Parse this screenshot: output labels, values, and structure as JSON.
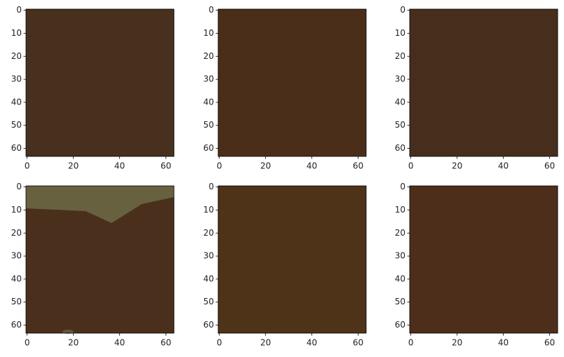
{
  "chart_data": [
    {
      "type": "image",
      "color": "#47301d",
      "xlim": [
        -0.5,
        63.5
      ],
      "ylim": [
        63.5,
        -0.5
      ],
      "xticks": [
        0,
        20,
        40,
        60
      ],
      "yticks": [
        0,
        10,
        20,
        30,
        40,
        50,
        60
      ]
    },
    {
      "type": "image",
      "color": "#4a2e1a",
      "xlim": [
        -0.5,
        63.5
      ],
      "ylim": [
        63.5,
        -0.5
      ],
      "xticks": [
        0,
        20,
        40,
        60
      ],
      "yticks": [
        0,
        10,
        20,
        30,
        40,
        50,
        60
      ]
    },
    {
      "type": "image",
      "color": "#472e1c",
      "xlim": [
        -0.5,
        63.5
      ],
      "ylim": [
        63.5,
        -0.5
      ],
      "xticks": [
        0,
        20,
        40,
        60
      ],
      "yticks": [
        0,
        10,
        20,
        30,
        40,
        50,
        60
      ]
    },
    {
      "type": "image",
      "color": "#4a301c",
      "xlim": [
        -0.5,
        63.5
      ],
      "ylim": [
        63.5,
        -0.5
      ],
      "xticks": [
        0,
        20,
        40,
        60
      ],
      "yticks": [
        0,
        10,
        20,
        30,
        40,
        50,
        60
      ]
    },
    {
      "type": "image",
      "color": "#4e3319",
      "xlim": [
        -0.5,
        63.5
      ],
      "ylim": [
        63.5,
        -0.5
      ],
      "xticks": [
        0,
        20,
        40,
        60
      ],
      "yticks": [
        0,
        10,
        20,
        30,
        40,
        50,
        60
      ]
    },
    {
      "type": "image",
      "color": "#4c2e1a",
      "xlim": [
        -0.5,
        63.5
      ],
      "ylim": [
        63.5,
        -0.5
      ],
      "xticks": [
        0,
        20,
        40,
        60
      ],
      "yticks": [
        0,
        10,
        20,
        30,
        40,
        50,
        60
      ]
    }
  ]
}
